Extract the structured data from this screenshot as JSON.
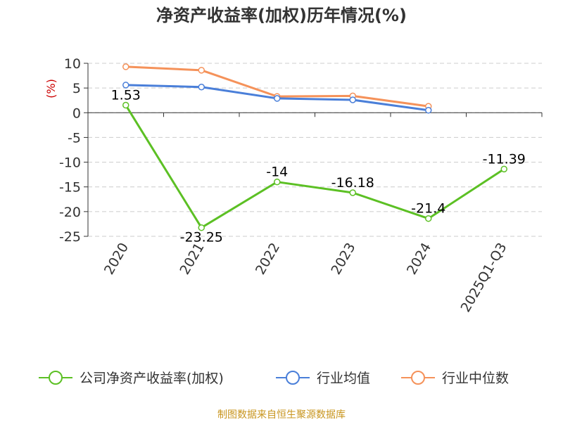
{
  "chart_data": {
    "type": "line",
    "title": "净资产收益率(加权)历年情况(%)",
    "ylabel": "(%)",
    "ylim": [
      -25,
      10
    ],
    "yticks": [
      10,
      5,
      0,
      -5,
      -10,
      -15,
      -20,
      -25
    ],
    "categories": [
      "2020",
      "2021",
      "2022",
      "2023",
      "2024",
      "2025Q1-Q3"
    ],
    "grid": true,
    "legend_position": "bottom",
    "series": [
      {
        "name": "公司净资产收益率(加权)",
        "color": "#5cc024",
        "values": [
          1.53,
          -23.25,
          -14,
          -16.18,
          -21.4,
          -11.39
        ],
        "labels": [
          "1.53",
          "-23.25",
          "-14",
          "-16.18",
          "-21.4",
          "-11.39"
        ]
      },
      {
        "name": "行业均值",
        "color": "#4a7fd9",
        "values": [
          5.6,
          5.2,
          2.9,
          2.6,
          0.5,
          null
        ]
      },
      {
        "name": "行业中位数",
        "color": "#f5925a",
        "values": [
          9.3,
          8.6,
          3.3,
          3.4,
          1.3,
          null
        ]
      }
    ]
  },
  "footer": {
    "source": "制图数据来自恒生聚源数据库"
  }
}
